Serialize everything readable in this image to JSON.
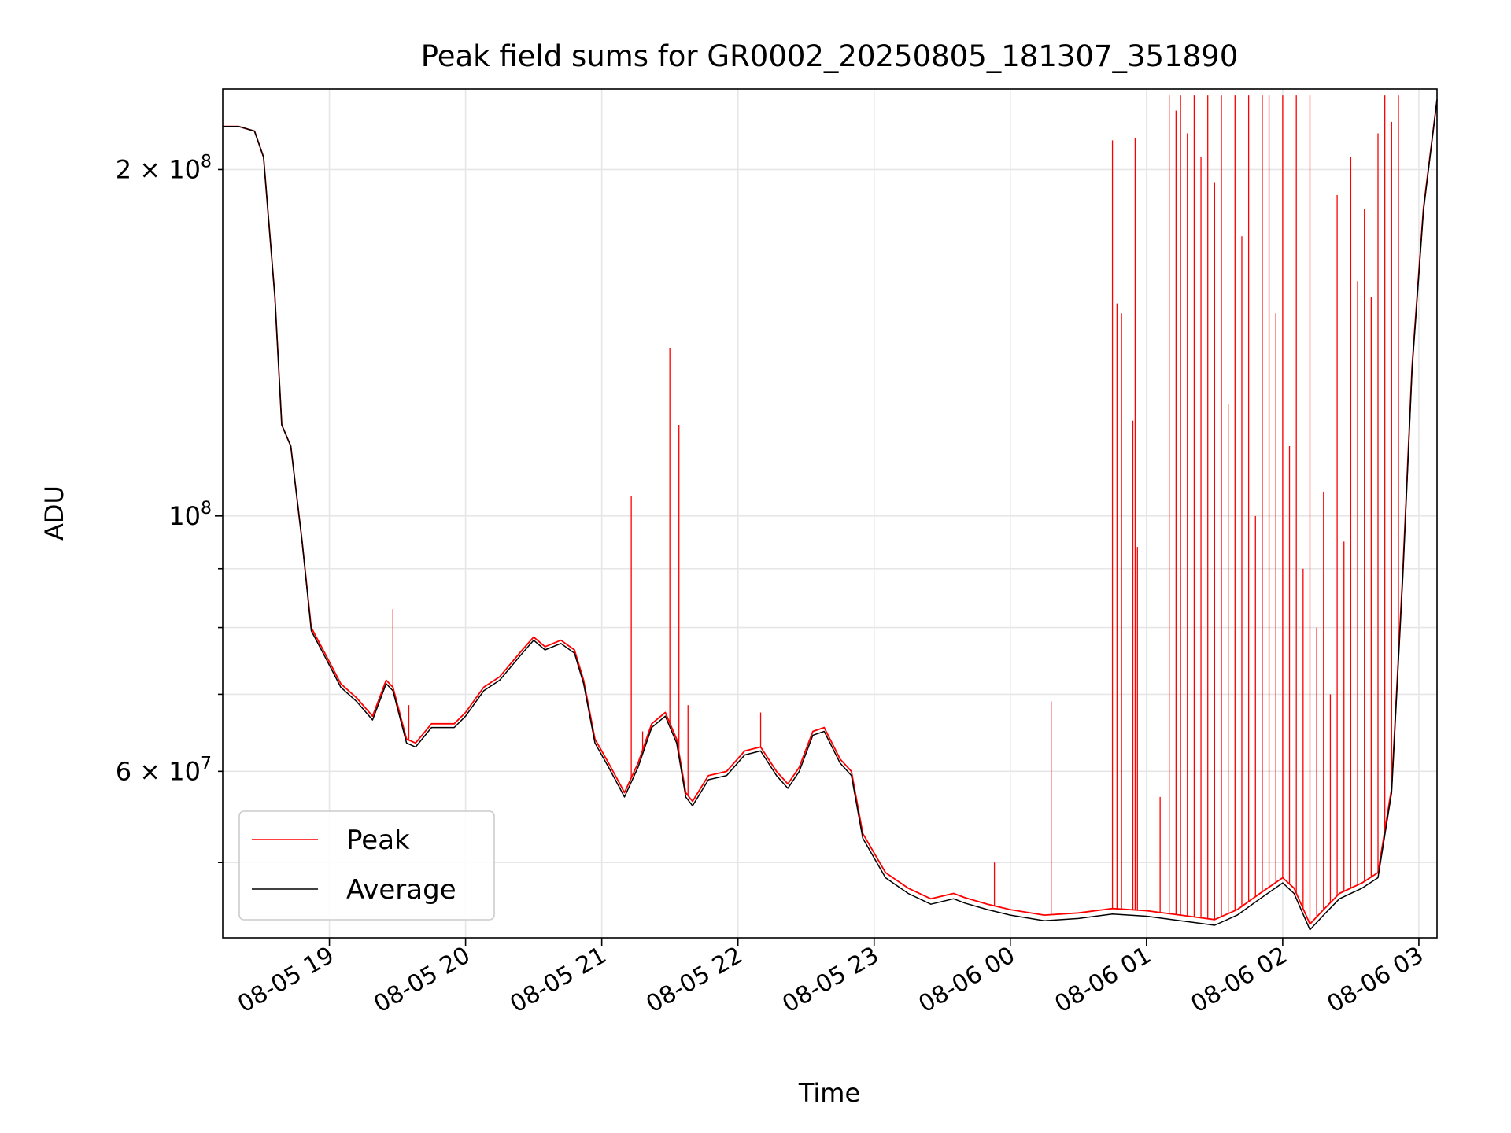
{
  "chart_data": {
    "type": "line",
    "title": "Peak field sums for GR0002_20250805_181307_351890",
    "xlabel": "Time",
    "ylabel": "ADU",
    "yscale": "log",
    "ylim": [
      43000000,
      235000000
    ],
    "xlim": [
      "2025-08-05 18:13",
      "2025-08-06 03:08"
    ],
    "grid": true,
    "legend": {
      "position": "lower-left"
    },
    "x_ticks": [
      {
        "t": "2025-08-05 19:00",
        "label": "08-05 19"
      },
      {
        "t": "2025-08-05 20:00",
        "label": "08-05 20"
      },
      {
        "t": "2025-08-05 21:00",
        "label": "08-05 21"
      },
      {
        "t": "2025-08-05 22:00",
        "label": "08-05 22"
      },
      {
        "t": "2025-08-05 23:00",
        "label": "08-05 23"
      },
      {
        "t": "2025-08-06 00:00",
        "label": "08-06 00"
      },
      {
        "t": "2025-08-06 01:00",
        "label": "08-06 01"
      },
      {
        "t": "2025-08-06 02:00",
        "label": "08-06 02"
      },
      {
        "t": "2025-08-06 03:00",
        "label": "08-06 03"
      }
    ],
    "y_ticks_major": [
      {
        "v": 100000000,
        "label_base": "10",
        "label_exp": "8"
      }
    ],
    "y_ticks_minor": [
      {
        "v": 60000000,
        "label_base": "6 × 10",
        "label_exp": "7"
      },
      {
        "v": 200000000,
        "label_base": "2 × 10",
        "label_exp": "8"
      }
    ],
    "y_ticks_minor_unlabeled": [
      50000000,
      70000000,
      80000000,
      90000000
    ],
    "series": [
      {
        "name": "Peak",
        "color": "#ff0000",
        "points": [
          [
            "2025-08-05 18:13",
            218000000
          ],
          [
            "2025-08-05 18:20",
            218000000
          ],
          [
            "2025-08-05 18:27",
            216000000
          ],
          [
            "2025-08-05 18:31",
            205000000
          ],
          [
            "2025-08-05 18:36",
            155000000
          ],
          [
            "2025-08-05 18:39",
            120000000
          ],
          [
            "2025-08-05 18:43",
            115000000
          ],
          [
            "2025-08-05 18:48",
            95000000
          ],
          [
            "2025-08-05 18:52",
            80000000
          ],
          [
            "2025-08-05 18:58",
            76000000
          ],
          [
            "2025-08-05 19:05",
            71500000
          ],
          [
            "2025-08-05 19:12",
            69500000
          ],
          [
            "2025-08-05 19:19",
            67000000
          ],
          [
            "2025-08-05 19:25",
            72000000
          ],
          [
            "2025-08-05 19:28",
            71000000
          ],
          [
            "2025-08-05 19:34",
            64000000
          ],
          [
            "2025-08-05 19:38",
            63500000
          ],
          [
            "2025-08-05 19:45",
            66000000
          ],
          [
            "2025-08-05 19:55",
            66000000
          ],
          [
            "2025-08-05 20:00",
            67500000
          ],
          [
            "2025-08-05 20:08",
            71000000
          ],
          [
            "2025-08-05 20:15",
            72500000
          ],
          [
            "2025-08-05 20:25",
            76500000
          ],
          [
            "2025-08-05 20:30",
            78500000
          ],
          [
            "2025-08-05 20:35",
            77000000
          ],
          [
            "2025-08-05 20:42",
            78000000
          ],
          [
            "2025-08-05 20:48",
            76500000
          ],
          [
            "2025-08-05 20:52",
            72000000
          ],
          [
            "2025-08-05 20:57",
            64000000
          ],
          [
            "2025-08-05 21:03",
            61000000
          ],
          [
            "2025-08-05 21:08",
            58500000
          ],
          [
            "2025-08-05 21:10",
            57500000
          ],
          [
            "2025-08-05 21:16",
            61000000
          ],
          [
            "2025-08-05 21:22",
            66000000
          ],
          [
            "2025-08-05 21:28",
            67500000
          ],
          [
            "2025-08-05 21:33",
            64000000
          ],
          [
            "2025-08-05 21:37",
            57500000
          ],
          [
            "2025-08-05 21:40",
            56500000
          ],
          [
            "2025-08-05 21:47",
            59500000
          ],
          [
            "2025-08-05 21:55",
            60000000
          ],
          [
            "2025-08-05 22:03",
            62500000
          ],
          [
            "2025-08-05 22:10",
            63000000
          ],
          [
            "2025-08-05 22:17",
            60000000
          ],
          [
            "2025-08-05 22:22",
            58500000
          ],
          [
            "2025-08-05 22:27",
            60500000
          ],
          [
            "2025-08-05 22:33",
            65000000
          ],
          [
            "2025-08-05 22:38",
            65500000
          ],
          [
            "2025-08-05 22:45",
            61500000
          ],
          [
            "2025-08-05 22:50",
            60000000
          ],
          [
            "2025-08-05 22:55",
            53000000
          ],
          [
            "2025-08-05 23:05",
            49000000
          ],
          [
            "2025-08-05 23:15",
            47500000
          ],
          [
            "2025-08-05 23:25",
            46500000
          ],
          [
            "2025-08-05 23:35",
            47000000
          ],
          [
            "2025-08-05 23:40",
            46600000
          ],
          [
            "2025-08-05 23:50",
            46000000
          ],
          [
            "2025-08-06 00:00",
            45500000
          ],
          [
            "2025-08-06 00:15",
            45000000
          ],
          [
            "2025-08-06 00:30",
            45200000
          ],
          [
            "2025-08-06 00:45",
            45600000
          ],
          [
            "2025-08-06 01:00",
            45400000
          ],
          [
            "2025-08-06 01:15",
            45000000
          ],
          [
            "2025-08-06 01:30",
            44600000
          ],
          [
            "2025-08-06 01:40",
            45500000
          ],
          [
            "2025-08-06 01:50",
            47000000
          ],
          [
            "2025-08-06 02:00",
            48500000
          ],
          [
            "2025-08-06 02:05",
            47500000
          ],
          [
            "2025-08-06 02:12",
            44200000
          ],
          [
            "2025-08-06 02:18",
            45500000
          ],
          [
            "2025-08-06 02:25",
            47000000
          ],
          [
            "2025-08-06 02:35",
            48000000
          ],
          [
            "2025-08-06 02:42",
            49000000
          ],
          [
            "2025-08-06 02:48",
            58000000
          ],
          [
            "2025-08-06 02:53",
            90000000
          ],
          [
            "2025-08-06 02:57",
            135000000
          ],
          [
            "2025-08-06 03:02",
            185000000
          ],
          [
            "2025-08-06 03:08",
            230000000
          ]
        ],
        "spikes": [
          [
            "2025-08-05 19:28",
            83000000
          ],
          [
            "2025-08-05 19:35",
            68500000
          ],
          [
            "2025-08-05 21:13",
            104000000
          ],
          [
            "2025-08-05 21:18",
            65000000
          ],
          [
            "2025-08-05 21:30",
            140000000
          ],
          [
            "2025-08-05 21:34",
            120000000
          ],
          [
            "2025-08-05 21:38",
            68500000
          ],
          [
            "2025-08-05 22:10",
            67500000
          ],
          [
            "2025-08-05 23:53",
            50000000
          ],
          [
            "2025-08-06 00:18",
            69000000
          ],
          [
            "2025-08-06 00:45",
            212000000
          ],
          [
            "2025-08-06 00:47",
            153000000
          ],
          [
            "2025-08-06 00:49",
            150000000
          ],
          [
            "2025-08-06 00:54",
            121000000
          ],
          [
            "2025-08-06 00:55",
            213000000
          ],
          [
            "2025-08-06 00:56",
            94000000
          ],
          [
            "2025-08-06 01:06",
            57000000
          ],
          [
            "2025-08-06 01:10",
            232000000
          ],
          [
            "2025-08-06 01:13",
            225000000
          ],
          [
            "2025-08-06 01:15",
            232000000
          ],
          [
            "2025-08-06 01:18",
            215000000
          ],
          [
            "2025-08-06 01:21",
            232000000
          ],
          [
            "2025-08-06 01:24",
            205000000
          ],
          [
            "2025-08-06 01:27",
            232000000
          ],
          [
            "2025-08-06 01:30",
            195000000
          ],
          [
            "2025-08-06 01:33",
            232000000
          ],
          [
            "2025-08-06 01:36",
            125000000
          ],
          [
            "2025-08-06 01:39",
            232000000
          ],
          [
            "2025-08-06 01:42",
            175000000
          ],
          [
            "2025-08-06 01:45",
            232000000
          ],
          [
            "2025-08-06 01:48",
            100000000
          ],
          [
            "2025-08-06 01:51",
            232000000
          ],
          [
            "2025-08-06 01:54",
            232000000
          ],
          [
            "2025-08-06 01:57",
            150000000
          ],
          [
            "2025-08-06 02:00",
            232000000
          ],
          [
            "2025-08-06 02:03",
            115000000
          ],
          [
            "2025-08-06 02:06",
            232000000
          ],
          [
            "2025-08-06 02:09",
            90000000
          ],
          [
            "2025-08-06 02:12",
            232000000
          ],
          [
            "2025-08-06 02:15",
            80000000
          ],
          [
            "2025-08-06 02:18",
            105000000
          ],
          [
            "2025-08-06 02:21",
            70000000
          ],
          [
            "2025-08-06 02:24",
            190000000
          ],
          [
            "2025-08-06 02:27",
            95000000
          ],
          [
            "2025-08-06 02:30",
            205000000
          ],
          [
            "2025-08-06 02:33",
            160000000
          ],
          [
            "2025-08-06 02:36",
            185000000
          ],
          [
            "2025-08-06 02:39",
            155000000
          ],
          [
            "2025-08-06 02:42",
            215000000
          ],
          [
            "2025-08-06 02:45",
            232000000
          ],
          [
            "2025-08-06 02:48",
            220000000
          ],
          [
            "2025-08-06 02:51",
            232000000
          ]
        ]
      },
      {
        "name": "Average",
        "color": "#000000",
        "points": [
          [
            "2025-08-05 18:13",
            218000000
          ],
          [
            "2025-08-05 18:20",
            218000000
          ],
          [
            "2025-08-05 18:27",
            216000000
          ],
          [
            "2025-08-05 18:31",
            205000000
          ],
          [
            "2025-08-05 18:36",
            155000000
          ],
          [
            "2025-08-05 18:39",
            120000000
          ],
          [
            "2025-08-05 18:43",
            115000000
          ],
          [
            "2025-08-05 18:48",
            95000000
          ],
          [
            "2025-08-05 18:52",
            79500000
          ],
          [
            "2025-08-05 18:58",
            75500000
          ],
          [
            "2025-08-05 19:05",
            71000000
          ],
          [
            "2025-08-05 19:12",
            69000000
          ],
          [
            "2025-08-05 19:19",
            66500000
          ],
          [
            "2025-08-05 19:25",
            71500000
          ],
          [
            "2025-08-05 19:28",
            70500000
          ],
          [
            "2025-08-05 19:34",
            63500000
          ],
          [
            "2025-08-05 19:38",
            63000000
          ],
          [
            "2025-08-05 19:45",
            65500000
          ],
          [
            "2025-08-05 19:55",
            65500000
          ],
          [
            "2025-08-05 20:00",
            67000000
          ],
          [
            "2025-08-05 20:08",
            70500000
          ],
          [
            "2025-08-05 20:15",
            72000000
          ],
          [
            "2025-08-05 20:25",
            76000000
          ],
          [
            "2025-08-05 20:30",
            78000000
          ],
          [
            "2025-08-05 20:35",
            76500000
          ],
          [
            "2025-08-05 20:42",
            77500000
          ],
          [
            "2025-08-05 20:48",
            76000000
          ],
          [
            "2025-08-05 20:52",
            71500000
          ],
          [
            "2025-08-05 20:57",
            63500000
          ],
          [
            "2025-08-05 21:03",
            60500000
          ],
          [
            "2025-08-05 21:08",
            58000000
          ],
          [
            "2025-08-05 21:10",
            57000000
          ],
          [
            "2025-08-05 21:16",
            60500000
          ],
          [
            "2025-08-05 21:22",
            65500000
          ],
          [
            "2025-08-05 21:28",
            67000000
          ],
          [
            "2025-08-05 21:33",
            63500000
          ],
          [
            "2025-08-05 21:37",
            57000000
          ],
          [
            "2025-08-05 21:40",
            56000000
          ],
          [
            "2025-08-05 21:47",
            59000000
          ],
          [
            "2025-08-05 21:55",
            59500000
          ],
          [
            "2025-08-05 22:03",
            62000000
          ],
          [
            "2025-08-05 22:10",
            62500000
          ],
          [
            "2025-08-05 22:17",
            59500000
          ],
          [
            "2025-08-05 22:22",
            58000000
          ],
          [
            "2025-08-05 22:27",
            60000000
          ],
          [
            "2025-08-05 22:33",
            64500000
          ],
          [
            "2025-08-05 22:38",
            65000000
          ],
          [
            "2025-08-05 22:45",
            61000000
          ],
          [
            "2025-08-05 22:50",
            59500000
          ],
          [
            "2025-08-05 22:55",
            52500000
          ],
          [
            "2025-08-05 23:05",
            48500000
          ],
          [
            "2025-08-05 23:15",
            47000000
          ],
          [
            "2025-08-05 23:25",
            46000000
          ],
          [
            "2025-08-05 23:35",
            46500000
          ],
          [
            "2025-08-05 23:40",
            46100000
          ],
          [
            "2025-08-05 23:50",
            45500000
          ],
          [
            "2025-08-06 00:00",
            45000000
          ],
          [
            "2025-08-06 00:15",
            44500000
          ],
          [
            "2025-08-06 00:30",
            44700000
          ],
          [
            "2025-08-06 00:45",
            45100000
          ],
          [
            "2025-08-06 01:00",
            44900000
          ],
          [
            "2025-08-06 01:15",
            44500000
          ],
          [
            "2025-08-06 01:30",
            44100000
          ],
          [
            "2025-08-06 01:40",
            45000000
          ],
          [
            "2025-08-06 01:50",
            46500000
          ],
          [
            "2025-08-06 02:00",
            48000000
          ],
          [
            "2025-08-06 02:05",
            47000000
          ],
          [
            "2025-08-06 02:12",
            43700000
          ],
          [
            "2025-08-06 02:18",
            45000000
          ],
          [
            "2025-08-06 02:25",
            46500000
          ],
          [
            "2025-08-06 02:35",
            47500000
          ],
          [
            "2025-08-06 02:42",
            48500000
          ],
          [
            "2025-08-06 02:48",
            57500000
          ],
          [
            "2025-08-06 02:53",
            89000000
          ],
          [
            "2025-08-06 02:57",
            134000000
          ],
          [
            "2025-08-06 03:02",
            184000000
          ],
          [
            "2025-08-06 03:08",
            230000000
          ]
        ]
      }
    ]
  }
}
